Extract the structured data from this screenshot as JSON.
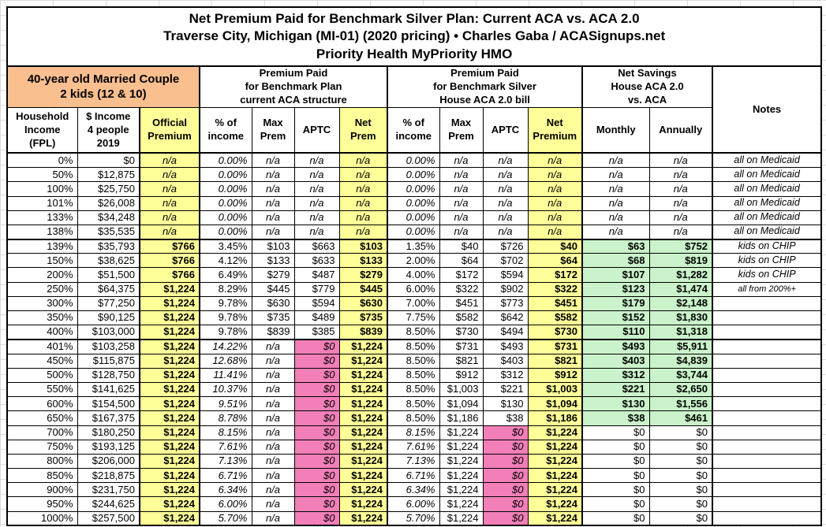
{
  "title": {
    "line1": "Net Premium Paid for Benchmark Silver Plan: Current ACA vs. ACA 2.0",
    "line2": "Traverse City, Michigan (MI-01) (2020 pricing) • Charles Gaba / ACASignups.net",
    "line3": "Priority Health MyPriority HMO"
  },
  "header": {
    "demographic": "40-year old Married Couple\n2 kids (12 & 10)",
    "group_aca": "Premium Paid\nfor Benchmark Plan\ncurrent ACA structure",
    "group_aca2": "Premium Paid\nfor Benchmark Silver\nHouse ACA 2.0 bill",
    "group_savings": "Net Savings\nHouse ACA 2.0\nvs. ACA",
    "notes": "Notes",
    "columns": [
      "Household\nIncome\n(FPL)",
      "$ Income\n4 people\n2019",
      "Official\nPremium",
      "% of\nincome",
      "Max\nPrem",
      "APTC",
      "Net\nPrem",
      "% of\nincome",
      "Max\nPrem",
      "APTC",
      "Net\nPremium",
      "Monthly",
      "Annually"
    ]
  },
  "colors": {
    "orange": "#FABF8F",
    "yellow": "#FFFF99",
    "pink": "#F27FB8",
    "green": "#CBF3CB"
  },
  "chart_data": {
    "type": "table",
    "columns": [
      "Household Income (FPL)",
      "$ Income 4 people 2019",
      "Official Premium",
      "ACA % of income",
      "ACA Max Prem",
      "ACA APTC",
      "ACA Net Prem",
      "ACA 2.0 % of income",
      "ACA 2.0 Max Prem",
      "ACA 2.0 APTC",
      "ACA 2.0 Net Premium",
      "Net Savings Monthly",
      "Net Savings Annually",
      "Notes"
    ],
    "rows": [
      [
        "0%",
        "$0",
        "n/a",
        "0.00%",
        "n/a",
        "n/a",
        "n/a",
        "0.00%",
        "n/a",
        "n/a",
        "n/a",
        "n/a",
        "n/a",
        "all on Medicaid"
      ],
      [
        "50%",
        "$12,875",
        "n/a",
        "0.00%",
        "n/a",
        "n/a",
        "n/a",
        "0.00%",
        "n/a",
        "n/a",
        "n/a",
        "n/a",
        "n/a",
        "all on Medicaid"
      ],
      [
        "100%",
        "$25,750",
        "n/a",
        "0.00%",
        "n/a",
        "n/a",
        "n/a",
        "0.00%",
        "n/a",
        "n/a",
        "n/a",
        "n/a",
        "n/a",
        "all on Medicaid"
      ],
      [
        "101%",
        "$26,008",
        "n/a",
        "0.00%",
        "n/a",
        "n/a",
        "n/a",
        "0.00%",
        "n/a",
        "n/a",
        "n/a",
        "n/a",
        "n/a",
        "all on Medicaid"
      ],
      [
        "133%",
        "$34,248",
        "n/a",
        "0.00%",
        "n/a",
        "n/a",
        "n/a",
        "0.00%",
        "n/a",
        "n/a",
        "n/a",
        "n/a",
        "n/a",
        "all on Medicaid"
      ],
      [
        "138%",
        "$35,535",
        "n/a",
        "0.00%",
        "n/a",
        "n/a",
        "n/a",
        "0.00%",
        "n/a",
        "n/a",
        "n/a",
        "n/a",
        "n/a",
        "all on Medicaid"
      ],
      [
        "139%",
        "$35,793",
        "$766",
        "3.45%",
        "$103",
        "$663",
        "$103",
        "1.35%",
        "$40",
        "$726",
        "$40",
        "$63",
        "$752",
        "kids on CHIP"
      ],
      [
        "150%",
        "$38,625",
        "$766",
        "4.12%",
        "$133",
        "$633",
        "$133",
        "2.00%",
        "$64",
        "$702",
        "$64",
        "$68",
        "$819",
        "kids on CHIP"
      ],
      [
        "200%",
        "$51,500",
        "$766",
        "6.49%",
        "$279",
        "$487",
        "$279",
        "4.00%",
        "$172",
        "$594",
        "$172",
        "$107",
        "$1,282",
        "kids on CHIP"
      ],
      [
        "250%",
        "$64,375",
        "$1,224",
        "8.29%",
        "$445",
        "$779",
        "$445",
        "6.00%",
        "$322",
        "$902",
        "$322",
        "$123",
        "$1,474",
        "all from 200%+"
      ],
      [
        "300%",
        "$77,250",
        "$1,224",
        "9.78%",
        "$630",
        "$594",
        "$630",
        "7.00%",
        "$451",
        "$773",
        "$451",
        "$179",
        "$2,148",
        ""
      ],
      [
        "350%",
        "$90,125",
        "$1,224",
        "9.78%",
        "$735",
        "$489",
        "$735",
        "7.75%",
        "$582",
        "$642",
        "$582",
        "$152",
        "$1,830",
        ""
      ],
      [
        "400%",
        "$103,000",
        "$1,224",
        "9.78%",
        "$839",
        "$385",
        "$839",
        "8.50%",
        "$730",
        "$494",
        "$730",
        "$110",
        "$1,318",
        ""
      ],
      [
        "401%",
        "$103,258",
        "$1,224",
        "14.22%",
        "n/a",
        "$0",
        "$1,224",
        "8.50%",
        "$731",
        "$493",
        "$731",
        "$493",
        "$5,911",
        ""
      ],
      [
        "450%",
        "$115,875",
        "$1,224",
        "12.68%",
        "n/a",
        "$0",
        "$1,224",
        "8.50%",
        "$821",
        "$403",
        "$821",
        "$403",
        "$4,839",
        ""
      ],
      [
        "500%",
        "$128,750",
        "$1,224",
        "11.41%",
        "n/a",
        "$0",
        "$1,224",
        "8.50%",
        "$912",
        "$312",
        "$912",
        "$312",
        "$3,744",
        ""
      ],
      [
        "550%",
        "$141,625",
        "$1,224",
        "10.37%",
        "n/a",
        "$0",
        "$1,224",
        "8.50%",
        "$1,003",
        "$221",
        "$1,003",
        "$221",
        "$2,650",
        ""
      ],
      [
        "600%",
        "$154,500",
        "$1,224",
        "9.51%",
        "n/a",
        "$0",
        "$1,224",
        "8.50%",
        "$1,094",
        "$130",
        "$1,094",
        "$130",
        "$1,556",
        ""
      ],
      [
        "650%",
        "$167,375",
        "$1,224",
        "8.78%",
        "n/a",
        "$0",
        "$1,224",
        "8.50%",
        "$1,186",
        "$38",
        "$1,186",
        "$38",
        "$461",
        ""
      ],
      [
        "700%",
        "$180,250",
        "$1,224",
        "8.15%",
        "n/a",
        "$0",
        "$1,224",
        "8.15%",
        "$1,224",
        "$0",
        "$1,224",
        "$0",
        "$0",
        ""
      ],
      [
        "750%",
        "$193,125",
        "$1,224",
        "7.61%",
        "n/a",
        "$0",
        "$1,224",
        "7.61%",
        "$1,224",
        "$0",
        "$1,224",
        "$0",
        "$0",
        ""
      ],
      [
        "800%",
        "$206,000",
        "$1,224",
        "7.13%",
        "n/a",
        "$0",
        "$1,224",
        "7.13%",
        "$1,224",
        "$0",
        "$1,224",
        "$0",
        "$0",
        ""
      ],
      [
        "850%",
        "$218,875",
        "$1,224",
        "6.71%",
        "n/a",
        "$0",
        "$1,224",
        "6.71%",
        "$1,224",
        "$0",
        "$1,224",
        "$0",
        "$0",
        ""
      ],
      [
        "900%",
        "$231,750",
        "$1,224",
        "6.34%",
        "n/a",
        "$0",
        "$1,224",
        "6.34%",
        "$1,224",
        "$0",
        "$1,224",
        "$0",
        "$0",
        ""
      ],
      [
        "950%",
        "$244,625",
        "$1,224",
        "6.00%",
        "n/a",
        "$0",
        "$1,224",
        "6.00%",
        "$1,224",
        "$0",
        "$1,224",
        "$0",
        "$0",
        ""
      ],
      [
        "1000%",
        "$257,500",
        "$1,224",
        "5.70%",
        "n/a",
        "$0",
        "$1,224",
        "5.70%",
        "$1,224",
        "$0",
        "$1,224",
        "$0",
        "$0",
        ""
      ]
    ]
  }
}
